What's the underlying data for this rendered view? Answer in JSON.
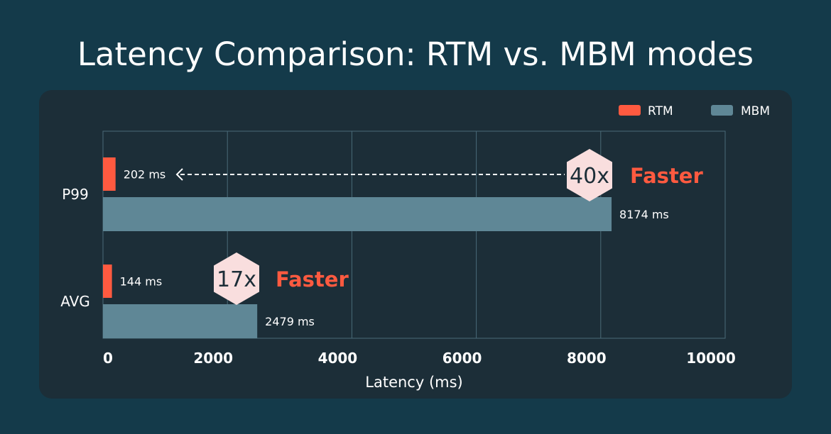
{
  "chart_data": {
    "type": "bar",
    "orientation": "horizontal",
    "title": "Latency Comparison: RTM vs. MBM modes",
    "xlabel": "Latency (ms)",
    "ylabel": "",
    "categories": [
      "P99",
      "AVG"
    ],
    "series": [
      {
        "name": "RTM",
        "color": "#ff5a40",
        "values": [
          202,
          144
        ],
        "labels": [
          "202 ms",
          "144 ms"
        ]
      },
      {
        "name": "MBM",
        "color": "#5f8796",
        "values": [
          8174,
          2479
        ],
        "labels": [
          "8174 ms",
          "2479 ms"
        ]
      }
    ],
    "xlim": [
      0,
      10000
    ],
    "xticks": [
      0,
      2000,
      4000,
      6000,
      8000,
      10000
    ],
    "xtick_labels": [
      "0",
      "2000",
      "4000",
      "6000",
      "8000",
      "10000"
    ],
    "grid": true,
    "legend": "top-right",
    "annotations": [
      {
        "badge": "40x",
        "text": "Faster",
        "category": "P99",
        "arrow": "dashed-left"
      },
      {
        "badge": "17x",
        "text": "Faster",
        "category": "AVG"
      }
    ],
    "colors": {
      "background": "#143a4a",
      "panel": "#1c2e38",
      "grid": "#4a6a78",
      "badge": "#f9dede",
      "accent": "#ff5a40"
    }
  }
}
